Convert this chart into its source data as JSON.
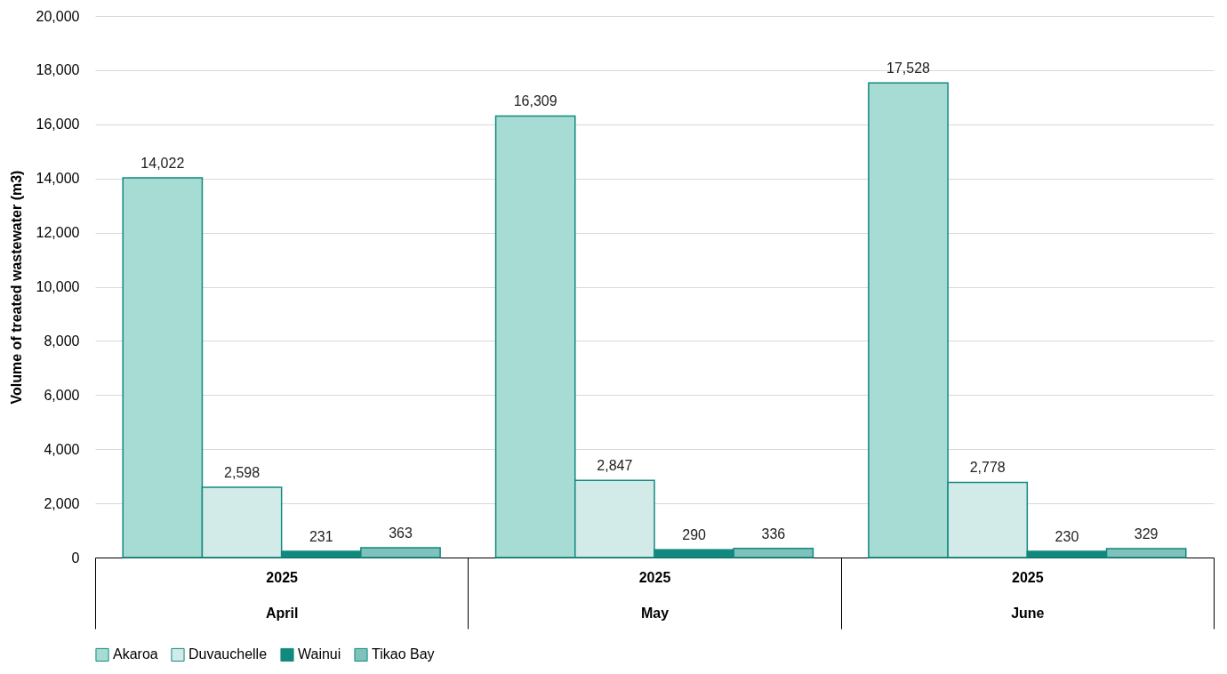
{
  "chart_data": {
    "type": "bar",
    "ylabel": "Volume of treated wastewater (m3)",
    "categories": [
      "2025\nApril",
      "2025\nMay",
      "2025\nJune"
    ],
    "series": [
      {
        "name": "Akaroa",
        "color": "#a6dcd3",
        "values": [
          14022,
          16309,
          17528
        ],
        "value_labels": [
          "14,022",
          "16,309",
          "17,528"
        ]
      },
      {
        "name": "Duvauchelle",
        "color": "#d3ebe8",
        "values": [
          2598,
          2847,
          2778
        ],
        "value_labels": [
          "2,598",
          "2,847",
          "2,778"
        ]
      },
      {
        "name": "Wainui",
        "color": "#12897f",
        "values": [
          231,
          290,
          230
        ],
        "value_labels": [
          "231",
          "290",
          "230"
        ]
      },
      {
        "name": "Tikao Bay",
        "color": "#7fc2bb",
        "values": [
          363,
          336,
          329
        ],
        "value_labels": [
          "363",
          "336",
          "329"
        ]
      }
    ],
    "ylim": [
      0,
      20000
    ],
    "yticks": [
      0,
      {
        "value": 2000,
        "label": "2,000"
      },
      {
        "value": 4000,
        "label": "4,000"
      },
      {
        "value": 6000,
        "label": "6,000"
      },
      {
        "value": 8000,
        "label": "8,000"
      },
      {
        "value": 10000,
        "label": "10,000"
      },
      {
        "value": 12000,
        "label": "12,000"
      },
      {
        "value": 14000,
        "label": "14,000"
      },
      {
        "value": 16000,
        "label": "16,000"
      },
      {
        "value": 18000,
        "label": "18,000"
      },
      {
        "value": 20000,
        "label": "20,000"
      }
    ],
    "grid": "y",
    "legend": "bottom"
  }
}
